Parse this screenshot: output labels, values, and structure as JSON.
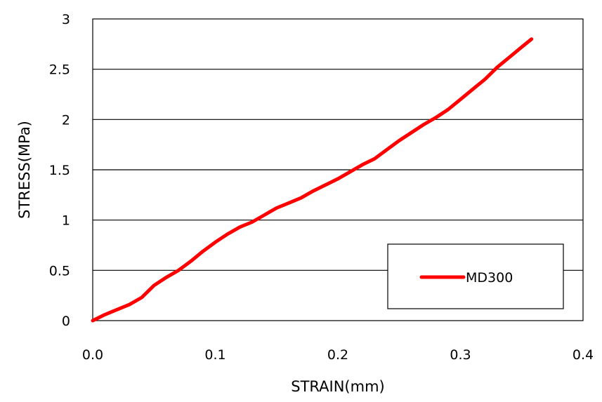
{
  "chart_data": {
    "type": "line",
    "title": "",
    "xlabel": "STRAIN(mm)",
    "ylabel": "STRESS(MPa)",
    "xlim": [
      0,
      0.4
    ],
    "ylim": [
      0,
      3
    ],
    "x_ticks": [
      "0.0",
      "0.1",
      "0.2",
      "0.3",
      "0.4"
    ],
    "y_ticks": [
      "0",
      "0.5",
      "1",
      "1.5",
      "2",
      "2.5",
      "3"
    ],
    "grid": "horizontal",
    "legend_position": "bottom-right",
    "series": [
      {
        "name": "MD300",
        "color": "#ff0000",
        "x": [
          0.0,
          0.01,
          0.02,
          0.03,
          0.04,
          0.05,
          0.06,
          0.07,
          0.08,
          0.09,
          0.1,
          0.11,
          0.12,
          0.13,
          0.14,
          0.15,
          0.16,
          0.17,
          0.18,
          0.19,
          0.2,
          0.21,
          0.22,
          0.23,
          0.24,
          0.25,
          0.26,
          0.27,
          0.28,
          0.29,
          0.3,
          0.31,
          0.32,
          0.33,
          0.34,
          0.35,
          0.358
        ],
        "y": [
          0.0,
          0.06,
          0.11,
          0.16,
          0.23,
          0.35,
          0.43,
          0.5,
          0.59,
          0.69,
          0.78,
          0.86,
          0.93,
          0.98,
          1.05,
          1.12,
          1.17,
          1.22,
          1.29,
          1.35,
          1.41,
          1.48,
          1.55,
          1.61,
          1.7,
          1.79,
          1.87,
          1.95,
          2.02,
          2.1,
          2.2,
          2.3,
          2.4,
          2.52,
          2.62,
          2.72,
          2.8
        ]
      }
    ]
  }
}
